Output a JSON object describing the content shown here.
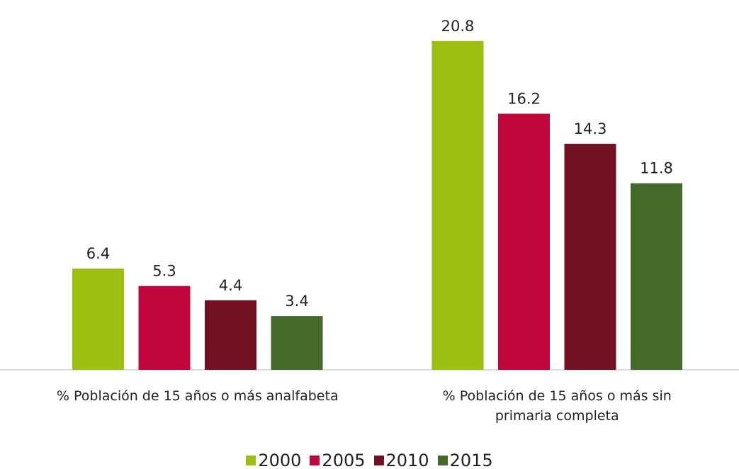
{
  "chart_data": {
    "type": "bar",
    "categories": [
      "% Población de 15 años o más analfabeta",
      "% Población de 15 años o más sin primaria completa"
    ],
    "series": [
      {
        "name": "2000",
        "color": "#9bbe0f",
        "values": [
          6.4,
          20.8
        ]
      },
      {
        "name": "2005",
        "color": "#c0063a",
        "values": [
          5.3,
          16.2
        ]
      },
      {
        "name": "2010",
        "color": "#731022",
        "values": [
          4.4,
          14.3
        ]
      },
      {
        "name": "2015",
        "color": "#436a2b",
        "values": [
          3.4,
          11.8
        ]
      }
    ],
    "ylim": [
      0,
      21.6
    ],
    "grid": false,
    "legend": "bottom"
  }
}
